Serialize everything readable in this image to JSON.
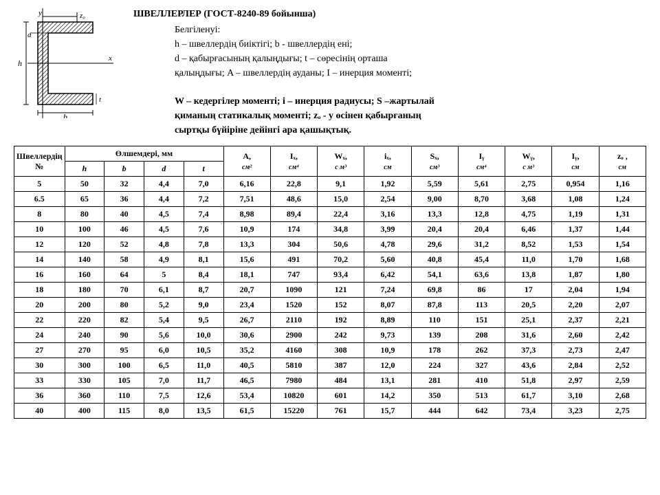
{
  "header": {
    "title": "ШВЕЛЛЕРЛЕР (ГОСТ-8240-89 бойынша)",
    "lines": [
      "Белгіленуі:",
      "h – швеллердің биіктігі;  b - швеллердің ені;",
      "d – қабырғасының қалыңдығы;  t – сөресінің орташа",
      "қалыңдығы;  A – швеллердің ауданы;  I – инерция моменті;",
      "",
      "W – кедергілер моменті; i – инерция радиусы; S –жартылай",
      "қиманың статикалық моменті; zₒ - y өсінен қабырғаның",
      "сыртқы бүйіріне дейінгі ара қашықтық."
    ]
  },
  "diagram": {
    "labels": {
      "h": "h",
      "b": "b",
      "d": "d",
      "t": "t",
      "y": "y",
      "x": "x",
      "z0": "z₀"
    },
    "stroke": "#000",
    "hatch": "#555"
  },
  "table": {
    "group_headers": {
      "no": "Швеллердің №",
      "dims": "Өлшемдері,  мм"
    },
    "columns": [
      {
        "key": "no",
        "label": "",
        "unit": ""
      },
      {
        "key": "h",
        "label": "h",
        "unit": ""
      },
      {
        "key": "b",
        "label": "b",
        "unit": ""
      },
      {
        "key": "d",
        "label": "d",
        "unit": ""
      },
      {
        "key": "t",
        "label": "t",
        "unit": ""
      },
      {
        "key": "A",
        "label": "A,",
        "unit": "см²"
      },
      {
        "key": "Ix",
        "label": "Iₓ,",
        "unit": "см⁴"
      },
      {
        "key": "Wx",
        "label": "Wₓ,",
        "unit": "с м³"
      },
      {
        "key": "ix",
        "label": "iₓ,",
        "unit": "см"
      },
      {
        "key": "Sx",
        "label": "Sₓ,",
        "unit": "см³"
      },
      {
        "key": "Iy",
        "label": "Iᵧ",
        "unit": "см⁴"
      },
      {
        "key": "Wy",
        "label": "Wᵧ,",
        "unit": "с м³"
      },
      {
        "key": "iy",
        "label": "Iᵧ,",
        "unit": "см"
      },
      {
        "key": "z0",
        "label": "zₒ ,",
        "unit": "см"
      }
    ],
    "rows": [
      [
        "5",
        "50",
        "32",
        "4,4",
        "7,0",
        "6,16",
        "22,8",
        "9,1",
        "1,92",
        "5,59",
        "5,61",
        "2,75",
        "0,954",
        "1,16"
      ],
      [
        "6.5",
        "65",
        "36",
        "4,4",
        "7,2",
        "7,51",
        "48,6",
        "15,0",
        "2,54",
        "9,00",
        "8,70",
        "3,68",
        "1,08",
        "1,24"
      ],
      [
        "8",
        "80",
        "40",
        "4,5",
        "7,4",
        "8,98",
        "89,4",
        "22,4",
        "3,16",
        "13,3",
        "12,8",
        "4,75",
        "1,19",
        "1,31"
      ],
      [
        "10",
        "100",
        "46",
        "4,5",
        "7,6",
        "10,9",
        "174",
        "34,8",
        "3,99",
        "20,4",
        "20,4",
        "6,46",
        "1,37",
        "1,44"
      ],
      [
        "12",
        "120",
        "52",
        "4,8",
        "7,8",
        "13,3",
        "304",
        "50,6",
        "4,78",
        "29,6",
        "31,2",
        "8,52",
        "1,53",
        "1,54"
      ],
      [
        "14",
        "140",
        "58",
        "4,9",
        "8,1",
        "15,6",
        "491",
        "70,2",
        "5,60",
        "40,8",
        "45,4",
        "11,0",
        "1,70",
        "1,68"
      ],
      [
        "16",
        "160",
        "64",
        "5",
        "8,4",
        "18,1",
        "747",
        "93,4",
        "6,42",
        "54,1",
        "63,6",
        "13,8",
        "1,87",
        "1,80"
      ],
      [
        "18",
        "180",
        "70",
        "6,1",
        "8,7",
        "20,7",
        "1090",
        "121",
        "7,24",
        "69,8",
        "86",
        "17",
        "2,04",
        "1,94"
      ],
      [
        "20",
        "200",
        "80",
        "5,2",
        "9,0",
        "23,4",
        "1520",
        "152",
        "8,07",
        "87,8",
        "113",
        "20,5",
        "2,20",
        "2,07"
      ],
      [
        "22",
        "220",
        "82",
        "5,4",
        "9,5",
        "26,7",
        "2110",
        "192",
        "8,89",
        "110",
        "151",
        "25,1",
        "2,37",
        "2,21"
      ],
      [
        "24",
        "240",
        "90",
        "5,6",
        "10,0",
        "30,6",
        "2900",
        "242",
        "9,73",
        "139",
        "208",
        "31,6",
        "2,60",
        "2,42"
      ],
      [
        "27",
        "270",
        "95",
        "6,0",
        "10,5",
        "35,2",
        "4160",
        "308",
        "10,9",
        "178",
        "262",
        "37,3",
        "2,73",
        "2,47"
      ],
      [
        "30",
        "300",
        "100",
        "6,5",
        "11,0",
        "40,5",
        "5810",
        "387",
        "12,0",
        "224",
        "327",
        "43,6",
        "2,84",
        "2,52"
      ],
      [
        "33",
        "330",
        "105",
        "7,0",
        "11,7",
        "46,5",
        "7980",
        "484",
        "13,1",
        "281",
        "410",
        "51,8",
        "2,97",
        "2,59"
      ],
      [
        "36",
        "360",
        "110",
        "7,5",
        "12,6",
        "53,4",
        "10820",
        "601",
        "14,2",
        "350",
        "513",
        "61,7",
        "3,10",
        "2,68"
      ],
      [
        "40",
        "400",
        "115",
        "8,0",
        "13,5",
        "61,5",
        "15220",
        "761",
        "15,7",
        "444",
        "642",
        "73,4",
        "3,23",
        "2,75"
      ]
    ],
    "col_widths_pct": [
      7,
      5.5,
      5.5,
      5.5,
      5.5,
      6.5,
      6.5,
      6.5,
      6.5,
      6.5,
      6.5,
      6.5,
      6.5,
      6.5
    ],
    "header_fontsize_pt": 11,
    "body_fontsize_pt": 11,
    "border_color": "#000000",
    "background_color": "#ffffff"
  }
}
